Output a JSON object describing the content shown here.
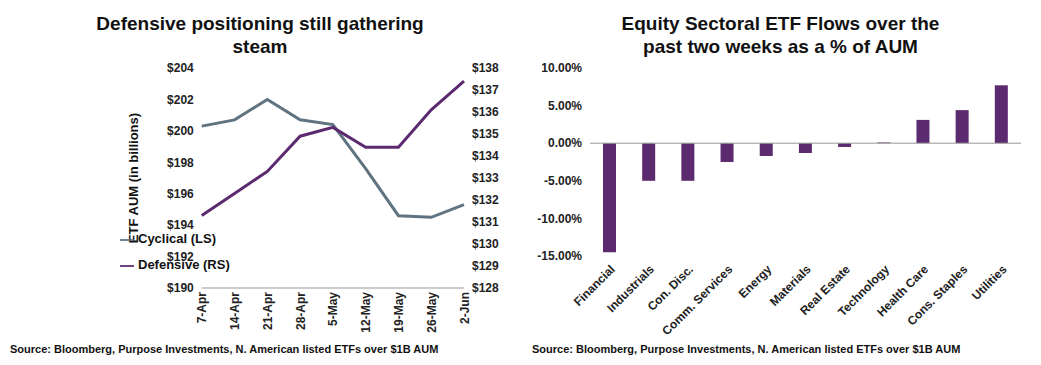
{
  "chart_data": [
    {
      "type": "line",
      "title": "Defensive positioning still gathering steam",
      "source": "Source: Bloomberg, Purpose Investments, N. American listed ETFs over $1B AUM",
      "categories": [
        "7-Apr",
        "14-Apr",
        "21-Apr",
        "28-Apr",
        "5-May",
        "12-May",
        "19-May",
        "26-May",
        "2-Jun"
      ],
      "y_label": "ETF AUM (in billions)",
      "ylim": [
        190,
        204
      ],
      "yticks": [
        {
          "value": 190,
          "label": "$190"
        },
        {
          "value": 192,
          "label": "$192"
        },
        {
          "value": 194,
          "label": "$194"
        },
        {
          "value": 196,
          "label": "$196"
        },
        {
          "value": 198,
          "label": "$198"
        },
        {
          "value": 200,
          "label": "$200"
        },
        {
          "value": 202,
          "label": "$202"
        },
        {
          "value": 204,
          "label": "$204"
        }
      ],
      "y2lim": [
        128,
        138
      ],
      "y2ticks": [
        {
          "value": 128,
          "label": "$128"
        },
        {
          "value": 129,
          "label": "$129"
        },
        {
          "value": 130,
          "label": "$130"
        },
        {
          "value": 131,
          "label": "$131"
        },
        {
          "value": 132,
          "label": "$132"
        },
        {
          "value": 133,
          "label": "$133"
        },
        {
          "value": 134,
          "label": "$134"
        },
        {
          "value": 135,
          "label": "$135"
        },
        {
          "value": 136,
          "label": "$136"
        },
        {
          "value": 137,
          "label": "$137"
        },
        {
          "value": 138,
          "label": "$138"
        }
      ],
      "grid": false,
      "legend": "lower left",
      "series": [
        {
          "name": "Cyclical (LS)",
          "color": "#5f7380",
          "values": [
            200.3,
            200.7,
            202.0,
            200.7,
            200.4,
            197.6,
            194.6,
            194.5,
            195.3
          ]
        },
        {
          "name": "Defensive (RS)",
          "color": "#5c2a6e",
          "axis": "y2",
          "values": [
            131.3,
            132.3,
            133.3,
            134.9,
            135.3,
            134.4,
            134.4,
            136.1,
            137.4
          ]
        }
      ]
    },
    {
      "type": "bar",
      "title": "Equity Sectoral ETF Flows over the past two weeks as a % of AUM",
      "source": "Source: Bloomberg, Purpose Investments, N. American listed ETFs over $1B AUM",
      "categories": [
        "Financial",
        "Industrials",
        "Con. Disc.",
        "Comm. Services",
        "Energy",
        "Materials",
        "Real Estate",
        "Technology",
        "Health Care",
        "Cons. Staples",
        "Utilities"
      ],
      "values": [
        -14.5,
        -5.0,
        -5.0,
        -2.5,
        -1.7,
        -1.3,
        -0.5,
        0.1,
        3.1,
        4.4,
        7.7
      ],
      "color": "#5c2a6e",
      "ylim": [
        -15,
        10
      ],
      "yticks": [
        {
          "value": -15,
          "label": "-15.00%"
        },
        {
          "value": -10,
          "label": "-10.00%"
        },
        {
          "value": -5,
          "label": "-5.00%"
        },
        {
          "value": 0,
          "label": "0.00%"
        },
        {
          "value": 5,
          "label": "5.00%"
        },
        {
          "value": 10,
          "label": "10.00%"
        }
      ],
      "grid": false
    }
  ]
}
